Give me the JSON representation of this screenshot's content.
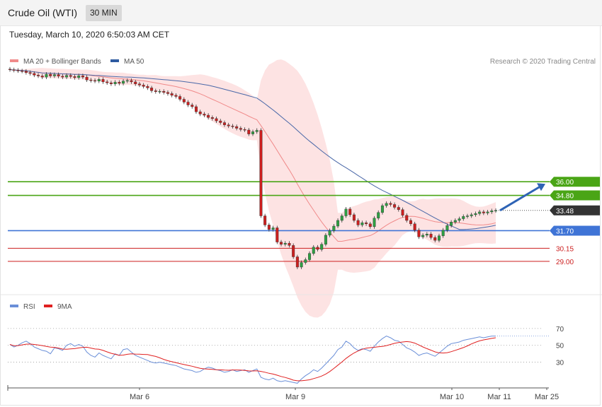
{
  "header": {
    "title": "Crude Oil (WTI)",
    "timeframe": "30 MIN"
  },
  "timestamp": "Tuesday, March 10, 2020 6:50:03 AM CET",
  "credit": "Research © 2020 Trading Central",
  "colors": {
    "bullish": "#2ea043",
    "bearish": "#cc1f1f",
    "bollinger_fill": "#fde2e2",
    "ma20": "#f08a8a",
    "ma50": "#4a68a8",
    "green_level": "#4aa516",
    "blue_level": "#3f74d6",
    "red_level": "#f5a3a3",
    "rsi": "#6a8fd8",
    "rsi_ma": "#e02020",
    "arrow": "#2e63b5",
    "current_tag": "#333333"
  },
  "chart_data": [
    {
      "type": "candlestick",
      "legend": [
        {
          "name": "MA 20 + Bollinger Bands",
          "color": "#f08a8a"
        },
        {
          "name": "MA 50",
          "color": "#2d5aa0"
        }
      ],
      "ylim": [
        26.2,
        46.2
      ],
      "levels": [
        {
          "value": 36.0,
          "label": "36.00",
          "kind": "resistance",
          "color": "#4aa516",
          "tag": "filled"
        },
        {
          "value": 34.8,
          "label": "34.80",
          "kind": "resistance",
          "color": "#4aa516",
          "tag": "filled"
        },
        {
          "value": 33.48,
          "label": "33.48",
          "kind": "current",
          "color": "#333333",
          "tag": "filled"
        },
        {
          "value": 31.7,
          "label": "31.70",
          "kind": "pivot",
          "color": "#3f74d6",
          "tag": "filled"
        },
        {
          "value": 30.15,
          "label": "30.15",
          "kind": "support",
          "color": "#cc1f1f",
          "tag": "text"
        },
        {
          "value": 29.0,
          "label": "29.00",
          "kind": "support",
          "color": "#cc1f1f",
          "tag": "text"
        }
      ],
      "x_ticks": [
        "Mar 6",
        "Mar 9",
        "Mar 10",
        "Mar 11",
        "Mar 25"
      ],
      "tick_positions": [
        0.27,
        0.6,
        0.927,
        1.027,
        1.11
      ],
      "closes": [
        45.85,
        45.8,
        45.75,
        45.72,
        45.6,
        45.52,
        45.38,
        45.3,
        45.2,
        45.45,
        45.3,
        45.42,
        45.28,
        45.2,
        45.35,
        45.25,
        45.15,
        45.32,
        45.2,
        44.95,
        44.9,
        44.85,
        45.0,
        44.78,
        44.7,
        44.6,
        44.75,
        44.65,
        44.85,
        44.9,
        44.78,
        44.6,
        44.5,
        44.38,
        44.25,
        44.0,
        43.92,
        43.95,
        43.85,
        43.75,
        43.6,
        43.5,
        43.25,
        43.0,
        42.75,
        42.6,
        42.15,
        41.95,
        41.85,
        41.65,
        41.55,
        41.35,
        41.2,
        41.0,
        40.9,
        40.85,
        40.7,
        40.6,
        40.55,
        40.2,
        40.4,
        40.52,
        33.0,
        32.2,
        31.8,
        31.95,
        30.7,
        30.5,
        30.6,
        30.4,
        29.4,
        28.5,
        28.9,
        29.15,
        29.7,
        30.25,
        30.05,
        30.5,
        31.3,
        31.7,
        32.1,
        32.6,
        33.0,
        33.6,
        33.1,
        32.6,
        32.2,
        32.4,
        32.3,
        32.05,
        32.8,
        33.3,
        33.9,
        34.1,
        34.0,
        33.75,
        33.55,
        33.05,
        32.6,
        32.3,
        31.75,
        31.15,
        31.3,
        31.4,
        31.1,
        30.85,
        31.25,
        31.75,
        32.15,
        32.45,
        32.6,
        32.75,
        32.95,
        33.0,
        33.1,
        33.2,
        33.35,
        33.25,
        33.35,
        33.45,
        33.48
      ],
      "rsi": {
        "legend": [
          {
            "name": "RSI",
            "color": "#6a8fd8"
          },
          {
            "name": "9MA",
            "color": "#e02020"
          }
        ],
        "levels": [
          70,
          50,
          30
        ],
        "ylim": [
          7,
          85
        ],
        "values": [
          51,
          48,
          50,
          53,
          55,
          52,
          48,
          46,
          44,
          43,
          40,
          47,
          46,
          44,
          50,
          52,
          49,
          51,
          49,
          42,
          38,
          36,
          41,
          38,
          36,
          34,
          40,
          38,
          45,
          46,
          42,
          38,
          36,
          34,
          32,
          30,
          29,
          30,
          29,
          28,
          27,
          26,
          24,
          22,
          21,
          20,
          18,
          19,
          22,
          24,
          23,
          21,
          20,
          18,
          19,
          21,
          19,
          20,
          21,
          18,
          20,
          22,
          12,
          10,
          9,
          11,
          8,
          7,
          8,
          7,
          6,
          5,
          10,
          14,
          17,
          21,
          19,
          23,
          28,
          33,
          38,
          45,
          48,
          55,
          52,
          47,
          44,
          46,
          45,
          43,
          49,
          54,
          58,
          61,
          59,
          56,
          55,
          51,
          47,
          45,
          42,
          38,
          40,
          41,
          39,
          37,
          41,
          45,
          49,
          52,
          53,
          54,
          56,
          57,
          58,
          59,
          60,
          59,
          60,
          61,
          61
        ]
      }
    }
  ]
}
